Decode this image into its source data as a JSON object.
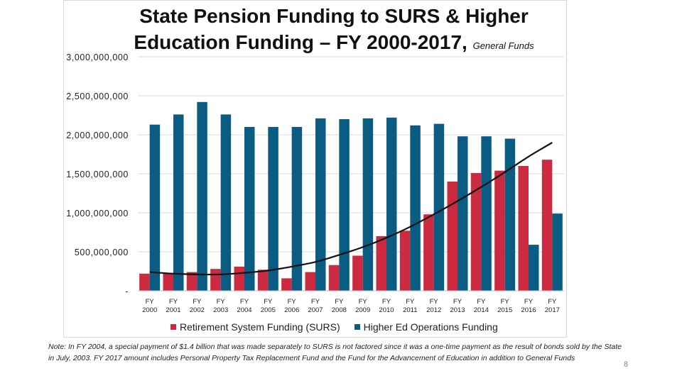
{
  "chart_data": {
    "type": "bar",
    "title": "State Pension Funding to SURS & Higher Education Funding – FY 2000-2017,",
    "subtitle": "General Funds",
    "xlabel": "",
    "ylabel": "",
    "ylim": [
      0,
      3000000000
    ],
    "yticks": [
      {
        "value": 0,
        "label": "-"
      },
      {
        "value": 500000000,
        "label": "500,000,000"
      },
      {
        "value": 1000000000,
        "label": "1,000,000,000"
      },
      {
        "value": 1500000000,
        "label": "1,500,000,000"
      },
      {
        "value": 2000000000,
        "label": "2,000,000,000"
      },
      {
        "value": 2500000000,
        "label": "2,500,000,000"
      },
      {
        "value": 3000000000,
        "label": "3,000,000,000"
      }
    ],
    "grid": true,
    "legend_position": "bottom",
    "categories": [
      [
        "FY",
        "2000"
      ],
      [
        "FY",
        "2001"
      ],
      [
        "FY",
        "2002"
      ],
      [
        "FY",
        "2003"
      ],
      [
        "FY",
        "2004"
      ],
      [
        "FY",
        "2005"
      ],
      [
        "FY",
        "2006"
      ],
      [
        "FY",
        "2007"
      ],
      [
        "FY",
        "2008"
      ],
      [
        "FY",
        "2009"
      ],
      [
        "FY",
        "2010"
      ],
      [
        "FY",
        "2011"
      ],
      [
        "FY",
        "2012"
      ],
      [
        "FY",
        "2013"
      ],
      [
        "FY",
        "2014"
      ],
      [
        "FY",
        "2015"
      ],
      [
        "FY",
        "2016"
      ],
      [
        "FY",
        "2017"
      ]
    ],
    "series": [
      {
        "name": "Retirement System Funding (SURS)",
        "color": "#cc2a40",
        "values": [
          220000000,
          220000000,
          240000000,
          280000000,
          310000000,
          270000000,
          160000000,
          240000000,
          330000000,
          450000000,
          700000000,
          770000000,
          980000000,
          1400000000,
          1510000000,
          1540000000,
          1600000000,
          1680000000
        ]
      },
      {
        "name": "Higher Ed Operations Funding",
        "color": "#0b5c82",
        "values": [
          2130000000,
          2260000000,
          2420000000,
          2260000000,
          2100000000,
          2100000000,
          2100000000,
          2210000000,
          2200000000,
          2210000000,
          2220000000,
          2120000000,
          2140000000,
          1980000000,
          1980000000,
          1950000000,
          590000000,
          990000000
        ]
      }
    ],
    "trendline": {
      "series": "Retirement System Funding (SURS)",
      "values": [
        240000000,
        220000000,
        210000000,
        210000000,
        230000000,
        260000000,
        310000000,
        370000000,
        460000000,
        560000000,
        680000000,
        820000000,
        980000000,
        1150000000,
        1330000000,
        1520000000,
        1720000000,
        1900000000
      ],
      "color": "#111111"
    }
  },
  "footnote": "Note: In FY 2004, a special payment of $1.4 billion that was made separately to SURS is not factored since it was a one-time payment as the result of bonds sold by the State in July, 2003. FY 2017 amount includes Personal Property Tax Replacement Fund and the Fund for the Advancement of Education in addition to General Funds",
  "page_number": "8"
}
